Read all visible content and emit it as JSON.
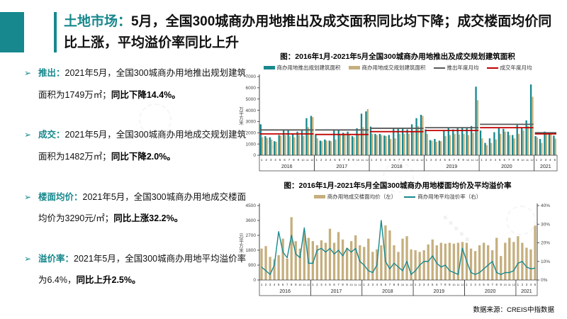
{
  "slide": {
    "title_accent": "土地市场：",
    "title_rest": "5月，全国300城商办用地推出及成交面积同比均下降；成交楼面均价同比上涨，平均溢价率同比上升",
    "source": "数据来源：CREIS中指数据"
  },
  "bullets": [
    {
      "label": "推出：",
      "text": "2021年5月，全国300城商办用地推出规划建筑面积为1749万㎡；",
      "bold": "同比下降14.4%。"
    },
    {
      "label": "成交：",
      "text": "2021年5月，全国300城商办用地成交规划建筑面积为1482万㎡；",
      "bold": "同比下降2.0%。"
    },
    {
      "label": "楼面均价：",
      "text": "2021年5月，全国300城商办用地成交楼面均价为3290元/㎡；",
      "bold": "同比上涨32.2%。"
    },
    {
      "label": "溢价率：",
      "text": "2021年5月，全国300城商办用地平均溢价率为6.4%，",
      "bold": "同比上升2.5%。"
    }
  ],
  "colors": {
    "accent": "#17888D",
    "bar_teal": "#17898D",
    "bar_tan": "#C6AF7E",
    "avg_gray": "#595959",
    "avg_red": "#C00000"
  },
  "chart_data": [
    {
      "type": "bar",
      "title": "图：2016年1月-2021年5月全国300城商办用地推出及成交规划建筑面积",
      "ylabel": "万平方米",
      "ylim": [
        0,
        7000
      ],
      "yticks": [
        0,
        1000,
        2000,
        3000,
        4000,
        5000,
        6000,
        7000
      ],
      "year_groups": [
        {
          "year": "2016",
          "months": 12
        },
        {
          "year": "2017",
          "months": 12
        },
        {
          "year": "2018",
          "months": 12
        },
        {
          "year": "2019",
          "months": 12
        },
        {
          "year": "2020",
          "months": 12
        },
        {
          "year": "2021",
          "months": 5
        }
      ],
      "series": [
        {
          "name": "商办用地推出规划建筑面积",
          "color": "#17898D",
          "values": [
            2750,
            1700,
            1600,
            1250,
            1800,
            2300,
            2300,
            1950,
            2100,
            2200,
            3300,
            3500,
            1800,
            1300,
            1400,
            1300,
            2250,
            2300,
            2000,
            2100,
            1700,
            2400,
            3700,
            3900,
            2550,
            1900,
            1900,
            1750,
            1800,
            2400,
            2350,
            2400,
            2300,
            2750,
            3300,
            3600,
            2300,
            1350,
            1450,
            1300,
            2250,
            2400,
            2300,
            2450,
            2500,
            2450,
            2600,
            6100,
            2200,
            1100,
            1500,
            2050,
            2400,
            2350,
            2100,
            1800,
            2700,
            2400,
            3100,
            6300,
            1700,
            1450,
            2100,
            2050,
            1749
          ]
        },
        {
          "name": "商办用地成交规划建筑面积",
          "color": "#C6AF7E",
          "values": [
            1600,
            1550,
            1400,
            1200,
            1750,
            1800,
            1700,
            1600,
            1800,
            1700,
            2500,
            3400,
            1500,
            1250,
            1300,
            1250,
            1400,
            1800,
            1900,
            1900,
            1600,
            1900,
            2500,
            4100,
            1900,
            1800,
            1800,
            1700,
            1450,
            1500,
            1900,
            1900,
            1900,
            2100,
            2600,
            3500,
            1900,
            1300,
            1200,
            1250,
            1700,
            1800,
            1900,
            1850,
            1900,
            1800,
            2000,
            4900,
            1500,
            900,
            1100,
            1400,
            1900,
            2100,
            1800,
            1500,
            1900,
            2200,
            2600,
            5200,
            1600,
            1100,
            1900,
            1950,
            1482
          ]
        }
      ],
      "avg_lines": [
        {
          "name": "推出年度月均",
          "color": "#595959",
          "values": [
            2250,
            2250,
            2400,
            2450,
            2750,
            2000
          ]
        },
        {
          "name": "成交年度月均",
          "color": "#C00000",
          "values": [
            1900,
            1850,
            2100,
            2200,
            2450,
            1900
          ]
        }
      ]
    },
    {
      "type": "bar+line",
      "title": "图：2016年1月-2021年5月全国300城商办用地楼面均价及平均溢价率",
      "ylabel": "元/平方米",
      "ylim_left": [
        0,
        4500
      ],
      "yticks_left": [
        0,
        900,
        1800,
        2700,
        3600,
        4500
      ],
      "ylim_right_pct": [
        0,
        40
      ],
      "yticks_right_pct": [
        0,
        10,
        20,
        30,
        40
      ],
      "year_groups": [
        {
          "year": "2016",
          "months": 12
        },
        {
          "year": "2017",
          "months": 12
        },
        {
          "year": "2018",
          "months": 12
        },
        {
          "year": "2019",
          "months": 12
        },
        {
          "year": "2020",
          "months": 12
        },
        {
          "year": "2021",
          "months": 5
        }
      ],
      "bar_series": {
        "name": "商办用地成交楼面均价（左）",
        "color": "#C6AF7E",
        "values": [
          1900,
          2050,
          1400,
          1250,
          1500,
          2500,
          1300,
          3800,
          2350,
          1900,
          2850,
          2550,
          2350,
          2100,
          2400,
          2250,
          3100,
          2250,
          2900,
          2450,
          1950,
          2350,
          2700,
          2100,
          2000,
          2500,
          1700,
          1850,
          2100,
          3300,
          3000,
          2100,
          1700,
          2500,
          2650,
          1850,
          1800,
          1700,
          1800,
          2150,
          2450,
          2100,
          2250,
          2200,
          2250,
          2200,
          2250,
          2300,
          2250,
          1900,
          1750,
          2100,
          2250,
          2100,
          1800,
          2550,
          1450,
          2250,
          2550,
          2300,
          2650,
          2250,
          1950,
          1850,
          3290
        ]
      },
      "line_series": {
        "name": "商办用地平均溢价率（右）",
        "color": "#17898D",
        "values": [
          7,
          5,
          3,
          8,
          26,
          15,
          12,
          24,
          14,
          12,
          28,
          9,
          9,
          16,
          17,
          15,
          17,
          14,
          16,
          13,
          17,
          15,
          17,
          10,
          8,
          5,
          4,
          8,
          32,
          10,
          6,
          9,
          7,
          5,
          10,
          3,
          5,
          8,
          10,
          10,
          13,
          9,
          7,
          8,
          5,
          4,
          3,
          17,
          10,
          4,
          3,
          4,
          6,
          8,
          10,
          4,
          3,
          4,
          4,
          5,
          9,
          10,
          7,
          6,
          6.4
        ]
      }
    }
  ]
}
